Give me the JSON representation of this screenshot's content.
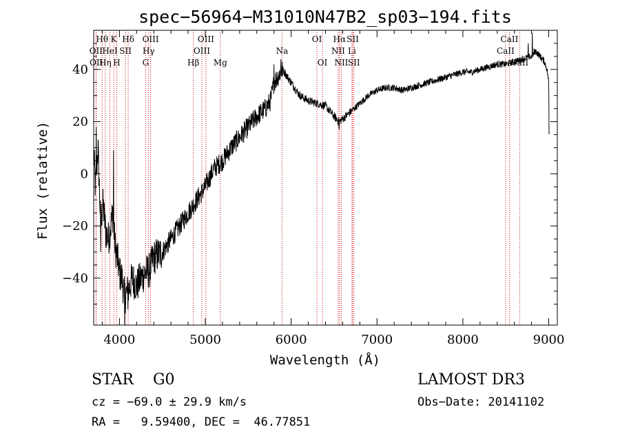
{
  "chart_data": {
    "type": "line",
    "title": "spec−56964−M31010N47B2_sp03−194.fits",
    "xlabel": "Wavelength (Å)",
    "ylabel": "Flux (relative)",
    "xlim": [
      3700,
      9100
    ],
    "ylim": [
      -58,
      55
    ],
    "xticks": [
      4000,
      5000,
      6000,
      7000,
      8000,
      9000
    ],
    "xtick_labels": [
      "4000",
      "5000",
      "6000",
      "7000",
      "8000",
      "9000"
    ],
    "yticks": [
      -40,
      -20,
      0,
      20,
      40
    ],
    "ytick_labels": [
      "−40",
      "−20",
      "0",
      "20",
      "40"
    ],
    "grid": false,
    "series": [
      {
        "name": "flux",
        "anchors": [
          [
            3700,
            8
          ],
          [
            3720,
            -5
          ],
          [
            3750,
            10
          ],
          [
            3780,
            -18
          ],
          [
            3810,
            -12
          ],
          [
            3840,
            -22
          ],
          [
            3870,
            -25
          ],
          [
            3900,
            -20
          ],
          [
            3920,
            -15
          ],
          [
            3950,
            -28
          ],
          [
            3980,
            -33
          ],
          [
            4000,
            -38
          ],
          [
            4030,
            -40
          ],
          [
            4060,
            -47
          ],
          [
            4100,
            -45
          ],
          [
            4150,
            -40
          ],
          [
            4200,
            -43
          ],
          [
            4250,
            -40
          ],
          [
            4300,
            -38
          ],
          [
            4350,
            -37
          ],
          [
            4400,
            -32
          ],
          [
            4500,
            -30
          ],
          [
            4600,
            -25
          ],
          [
            4700,
            -20
          ],
          [
            4800,
            -15
          ],
          [
            4900,
            -10
          ],
          [
            5000,
            -5
          ],
          [
            5100,
            2
          ],
          [
            5200,
            5
          ],
          [
            5300,
            10
          ],
          [
            5400,
            14
          ],
          [
            5500,
            18
          ],
          [
            5600,
            22
          ],
          [
            5700,
            25
          ],
          [
            5760,
            28
          ],
          [
            5800,
            35
          ],
          [
            5860,
            38
          ],
          [
            5900,
            40
          ],
          [
            5940,
            38
          ],
          [
            6000,
            35
          ],
          [
            6100,
            30
          ],
          [
            6200,
            28
          ],
          [
            6300,
            27
          ],
          [
            6400,
            26
          ],
          [
            6450,
            24
          ],
          [
            6500,
            22
          ],
          [
            6560,
            20
          ],
          [
            6600,
            21
          ],
          [
            6700,
            24
          ],
          [
            6800,
            27
          ],
          [
            6900,
            30
          ],
          [
            7000,
            32
          ],
          [
            7100,
            33
          ],
          [
            7200,
            33
          ],
          [
            7300,
            32
          ],
          [
            7400,
            33
          ],
          [
            7500,
            34
          ],
          [
            7600,
            35
          ],
          [
            7700,
            36
          ],
          [
            7800,
            37
          ],
          [
            7900,
            38
          ],
          [
            8000,
            39
          ],
          [
            8100,
            39
          ],
          [
            8200,
            40
          ],
          [
            8300,
            41
          ],
          [
            8400,
            42
          ],
          [
            8500,
            42
          ],
          [
            8600,
            43
          ],
          [
            8700,
            44
          ],
          [
            8800,
            45
          ],
          [
            8850,
            47
          ],
          [
            8900,
            45
          ],
          [
            8950,
            43
          ],
          [
            8980,
            40
          ],
          [
            9000,
            35
          ],
          [
            9005,
            10
          ]
        ],
        "spikes": [
          [
            3730,
            18
          ],
          [
            3780,
            -30
          ],
          [
            3840,
            -28
          ],
          [
            3930,
            9
          ],
          [
            4060,
            -58
          ],
          [
            4100,
            -52
          ],
          [
            5800,
            42
          ],
          [
            5880,
            44
          ],
          [
            6560,
            17
          ],
          [
            8810,
            54
          ],
          [
            8760,
            50
          ],
          [
            8830,
            48
          ]
        ]
      }
    ],
    "line_markers": [
      {
        "name": "Hθ",
        "wavelength": 3798,
        "row": 0
      },
      {
        "name": "OII",
        "wavelength": 3727,
        "row": 1
      },
      {
        "name": "OII",
        "wavelength": 3730,
        "row": 2
      },
      {
        "name": "HeI",
        "wavelength": 3889,
        "row": 1
      },
      {
        "name": "Hη",
        "wavelength": 3835,
        "row": 2
      },
      {
        "name": "K",
        "wavelength": 3934,
        "row": 0
      },
      {
        "name": "SII",
        "wavelength": 4070,
        "row": 1
      },
      {
        "name": "H",
        "wavelength": 3969,
        "row": 2
      },
      {
        "name": "Hδ",
        "wavelength": 4102,
        "row": 0
      },
      {
        "name": "OIII",
        "wavelength": 4363,
        "row": 0
      },
      {
        "name": "Hγ",
        "wavelength": 4340,
        "row": 1
      },
      {
        "name": "G",
        "wavelength": 4305,
        "row": 2
      },
      {
        "name": "OIII",
        "wavelength": 5007,
        "row": 0
      },
      {
        "name": "OIII",
        "wavelength": 4959,
        "row": 1
      },
      {
        "name": "Hβ",
        "wavelength": 4861,
        "row": 2
      },
      {
        "name": "Mg",
        "wavelength": 5175,
        "row": 2
      },
      {
        "name": "Na",
        "wavelength": 5894,
        "row": 1
      },
      {
        "name": "OI",
        "wavelength": 6300,
        "row": 0
      },
      {
        "name": "OI",
        "wavelength": 6364,
        "row": 2
      },
      {
        "name": "Hα",
        "wavelength": 6563,
        "row": 0
      },
      {
        "name": "NII",
        "wavelength": 6548,
        "row": 1
      },
      {
        "name": "NII",
        "wavelength": 6584,
        "row": 2
      },
      {
        "name": "SII",
        "wavelength": 6717,
        "row": 0
      },
      {
        "name": "Li",
        "wavelength": 6708,
        "row": 1
      },
      {
        "name": "SII",
        "wavelength": 6731,
        "row": 2
      },
      {
        "name": "CaII",
        "wavelength": 8542,
        "row": 0
      },
      {
        "name": "CaII",
        "wavelength": 8498,
        "row": 1
      },
      {
        "name": "CaII",
        "wavelength": 8662,
        "row": 2
      }
    ],
    "marker_color": "#cc0000",
    "line_color": "#000000"
  },
  "info": {
    "class_text": "STAR    G0",
    "survey_text": "LAMOST DR3",
    "cz_text": "cz = −69.0 ± 29.9 km/s",
    "obs_text": "Obs−Date: 20141102",
    "radec_text": "RA =   9.59400, DEC =  46.77851"
  }
}
